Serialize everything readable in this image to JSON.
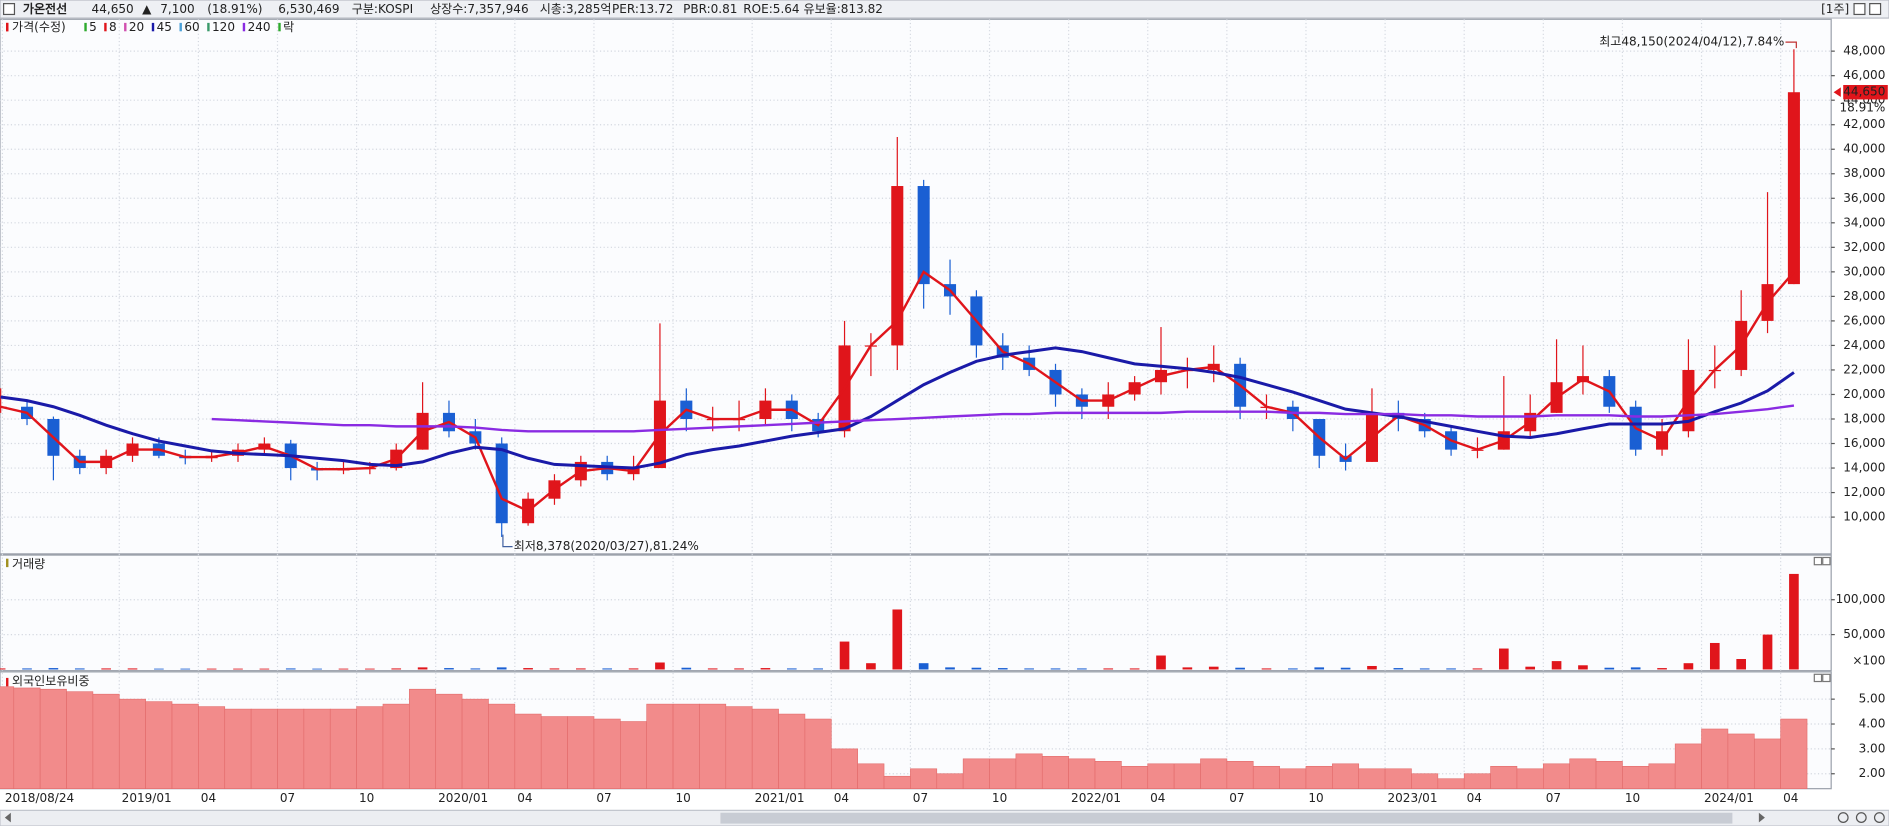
{
  "header": {
    "name": "가온전선",
    "price": "44,650",
    "arrow": "▲",
    "change": "7,100",
    "change_pct": "(18.91%)",
    "volume": "6,530,469",
    "info": [
      "구분:KOSPI",
      "상장수:7,357,946",
      "시총:3,285억",
      "PER:13.72",
      "PBR:0.81",
      "ROE:5.64",
      "유보율:813.82"
    ],
    "period": "[1주]"
  },
  "chart_data": [
    {
      "type": "candlestick",
      "title": "가격(수정)",
      "up_color": "#e0151b",
      "down_color": "#1a5fd3",
      "open": [
        19000,
        19000,
        18000,
        15000,
        14000,
        15000,
        16000,
        15000,
        14800,
        15000,
        15500,
        16000,
        14000,
        13800,
        14000,
        14000,
        15500,
        18500,
        17000,
        16000,
        9500,
        11500,
        13000,
        14500,
        13500,
        14000,
        19500,
        18000,
        18000,
        18000,
        19500,
        18000,
        17000,
        24000,
        24000,
        37000,
        29000,
        28000,
        24000,
        23000,
        22000,
        20000,
        19000,
        20000,
        21000,
        22000,
        22000,
        22500,
        19000,
        19000,
        18000,
        15000,
        14500,
        18500,
        18000,
        17000,
        15500,
        15500,
        17000,
        18500,
        21000,
        21500,
        19000,
        15500,
        17000,
        22000,
        22000,
        26000,
        29000
      ],
      "high": [
        20500,
        19500,
        18200,
        15500,
        15500,
        16500,
        16500,
        15500,
        15500,
        16000,
        16500,
        16300,
        14500,
        14500,
        14500,
        16000,
        21000,
        19500,
        18000,
        16500,
        12000,
        13500,
        15000,
        15000,
        15000,
        25800,
        20500,
        19000,
        19500,
        20500,
        20000,
        18500,
        26000,
        25000,
        41000,
        37500,
        31000,
        28500,
        25000,
        24000,
        22500,
        20500,
        21000,
        21500,
        25500,
        23000,
        24000,
        23000,
        20000,
        19500,
        18000,
        16000,
        20500,
        19500,
        18500,
        17500,
        16500,
        21500,
        20000,
        24500,
        24000,
        22000,
        19500,
        18000,
        24500,
        24000,
        28500,
        36500,
        48150
      ],
      "low": [
        18500,
        17500,
        13000,
        13500,
        13500,
        14500,
        14800,
        14300,
        14500,
        14500,
        15000,
        13000,
        13000,
        13500,
        13500,
        13800,
        15500,
        16500,
        15500,
        8378,
        9300,
        11000,
        12500,
        13000,
        13000,
        14000,
        17000,
        17000,
        17000,
        17500,
        17000,
        16500,
        16500,
        21500,
        22000,
        27000,
        26500,
        23000,
        22000,
        21500,
        19000,
        18000,
        18000,
        19500,
        20000,
        20500,
        21000,
        18000,
        18000,
        17000,
        14000,
        13800,
        14500,
        17000,
        16500,
        15000,
        14800,
        15500,
        16500,
        18500,
        20000,
        18500,
        15000,
        15000,
        16500,
        20500,
        21500,
        25000,
        29000
      ],
      "close": [
        19000,
        18000,
        15000,
        14000,
        15000,
        16000,
        15000,
        14800,
        15000,
        15500,
        16000,
        14000,
        13800,
        14000,
        14000,
        15500,
        18500,
        17000,
        16000,
        9500,
        11500,
        13000,
        14500,
        13500,
        14000,
        19500,
        18000,
        18000,
        18000,
        19500,
        18000,
        17000,
        24000,
        24000,
        37000,
        29000,
        28000,
        24000,
        23000,
        22000,
        20000,
        19000,
        20000,
        21000,
        22000,
        22000,
        22500,
        19000,
        19000,
        18000,
        15000,
        14500,
        18500,
        18000,
        17000,
        15500,
        15500,
        17000,
        18500,
        21000,
        21500,
        19000,
        15500,
        17000,
        22000,
        22000,
        26000,
        29000,
        44650
      ],
      "moving_averages": [
        {
          "name": "5",
          "color": "#2eaa2e"
        },
        {
          "name": "8",
          "color": "#e0151b",
          "width": 2,
          "values": [
            19000,
            18500,
            16500,
            14500,
            14500,
            15500,
            15500,
            14900,
            14900,
            15250,
            15750,
            15000,
            13900,
            13900,
            14000,
            14750,
            17000,
            17750,
            16500,
            11500,
            10500,
            12250,
            13750,
            14000,
            13750,
            16750,
            18750,
            18000,
            18000,
            18750,
            18750,
            17500,
            20500,
            24000,
            26000,
            30000,
            28500,
            26000,
            23500,
            22500,
            21000,
            19500,
            19500,
            20500,
            21500,
            22000,
            22250,
            20750,
            19000,
            18500,
            16500,
            14750,
            16500,
            18250,
            17500,
            16250,
            15500,
            16250,
            17750,
            19750,
            21250,
            20250,
            17250,
            16250,
            19500,
            22000,
            24000,
            27500,
            30000
          ]
        },
        {
          "name": "20",
          "color": "#d050b0"
        },
        {
          "name": "45",
          "color": "#1a1aa8",
          "width": 2.5,
          "values": [
            19800,
            19500,
            19000,
            18300,
            17500,
            16800,
            16200,
            15800,
            15400,
            15200,
            15100,
            15000,
            14800,
            14600,
            14300,
            14200,
            14500,
            15200,
            15700,
            15500,
            14800,
            14300,
            14200,
            14100,
            14000,
            14400,
            15100,
            15500,
            15800,
            16200,
            16600,
            16900,
            17200,
            18200,
            19500,
            20800,
            21800,
            22700,
            23200,
            23500,
            23800,
            23500,
            23000,
            22500,
            22300,
            22100,
            21800,
            21400,
            20800,
            20200,
            19500,
            18800,
            18500,
            18200,
            17800,
            17400,
            17000,
            16600,
            16500,
            16800,
            17200,
            17600,
            17600,
            17600,
            17800,
            18600,
            19300,
            20300,
            21800
          ]
        },
        {
          "name": "60",
          "color": "#4aa0d8"
        },
        {
          "name": "120",
          "color": "#3a9a6a"
        },
        {
          "name": "240",
          "color": "#8a2be2",
          "width": 2,
          "values": [
            null,
            null,
            null,
            null,
            null,
            null,
            null,
            null,
            18000,
            17900,
            17800,
            17700,
            17600,
            17500,
            17500,
            17400,
            17400,
            17400,
            17300,
            17100,
            17000,
            17000,
            17000,
            17000,
            17000,
            17100,
            17200,
            17300,
            17400,
            17500,
            17600,
            17700,
            17800,
            17900,
            18000,
            18100,
            18200,
            18300,
            18400,
            18400,
            18500,
            18500,
            18500,
            18500,
            18500,
            18600,
            18600,
            18600,
            18600,
            18500,
            18500,
            18400,
            18400,
            18400,
            18300,
            18300,
            18200,
            18200,
            18200,
            18300,
            18300,
            18300,
            18200,
            18200,
            18300,
            18400,
            18600,
            18800,
            19100
          ]
        }
      ],
      "extra_legend": "락",
      "high_label": "최고48,150(2024/04/12),7.84%",
      "low_label": "최저8,378(2020/03/27),81.24%",
      "last_price_label": "44,650",
      "last_change_label": "18.91%",
      "ylim": [
        7000,
        50600
      ],
      "yticks": [
        {
          "value": 10000,
          "label": "10,000"
        },
        {
          "value": 12000,
          "label": "12,000"
        },
        {
          "value": 14000,
          "label": "14,000"
        },
        {
          "value": 16000,
          "label": "16,000"
        },
        {
          "value": 18000,
          "label": "18,000"
        },
        {
          "value": 20000,
          "label": "20,000"
        },
        {
          "value": 22000,
          "label": "22,000"
        },
        {
          "value": 24000,
          "label": "24,000"
        },
        {
          "value": 26000,
          "label": "26,000"
        },
        {
          "value": 28000,
          "label": "28,000"
        },
        {
          "value": 30000,
          "label": "30,000"
        },
        {
          "value": 32000,
          "label": "32,000"
        },
        {
          "value": 34000,
          "label": "34,000"
        },
        {
          "value": 36000,
          "label": "36,000"
        },
        {
          "value": 38000,
          "label": "38,000"
        },
        {
          "value": 40000,
          "label": "40,000"
        },
        {
          "value": 42000,
          "label": "42,000"
        },
        {
          "value": 44000,
          "label": "44,000"
        },
        {
          "value": 46000,
          "label": "46,000"
        },
        {
          "value": 48000,
          "label": "48,000"
        }
      ],
      "grid": true
    },
    {
      "type": "bar",
      "title": "거래량",
      "unit_label": "×100",
      "values": [
        1500,
        1500,
        2000,
        1500,
        1500,
        1500,
        1200,
        1200,
        1200,
        1200,
        1200,
        1500,
        1200,
        1200,
        1200,
        1500,
        3000,
        2000,
        1500,
        3000,
        2000,
        1500,
        1500,
        1500,
        1500,
        10000,
        2500,
        1500,
        1500,
        2000,
        1500,
        1500,
        40000,
        9000,
        86000,
        9000,
        3000,
        2500,
        2000,
        1500,
        1500,
        1500,
        1500,
        1500,
        20000,
        3000,
        4000,
        2500,
        1500,
        1500,
        3000,
        2500,
        5000,
        2000,
        1500,
        1500,
        1500,
        30000,
        4000,
        12000,
        6000,
        2500,
        3000,
        2000,
        9000,
        38000,
        15000,
        50000,
        137000
      ],
      "ylim": [
        0,
        164000
      ],
      "yticks": [
        {
          "value": 50000,
          "label": "50,000"
        },
        {
          "value": 100000,
          "label": "100,000"
        }
      ]
    },
    {
      "type": "bar",
      "title": "외국인보유비중",
      "color": "#f28b8b",
      "values": [
        5.5,
        5.45,
        5.4,
        5.3,
        5.2,
        5.0,
        4.9,
        4.8,
        4.7,
        4.6,
        4.6,
        4.6,
        4.6,
        4.6,
        4.7,
        4.8,
        5.4,
        5.2,
        5.0,
        4.8,
        4.4,
        4.3,
        4.3,
        4.2,
        4.1,
        4.8,
        4.8,
        4.8,
        4.7,
        4.6,
        4.4,
        4.2,
        3.0,
        2.4,
        1.9,
        2.2,
        2.0,
        2.6,
        2.6,
        2.8,
        2.7,
        2.6,
        2.5,
        2.3,
        2.4,
        2.4,
        2.6,
        2.5,
        2.3,
        2.2,
        2.3,
        2.4,
        2.2,
        2.2,
        2.0,
        1.8,
        2.0,
        2.3,
        2.2,
        2.4,
        2.6,
        2.5,
        2.3,
        2.4,
        3.2,
        3.8,
        3.6,
        3.4,
        4.2
      ],
      "categories": [
        "2018/08/24",
        null,
        null,
        null,
        null,
        "2019/01",
        null,
        null,
        "04",
        null,
        null,
        "07",
        null,
        null,
        "10",
        null,
        null,
        "2020/01",
        null,
        null,
        "04",
        null,
        null,
        "07",
        null,
        null,
        "10",
        null,
        null,
        "2021/01",
        null,
        null,
        "04",
        null,
        null,
        "07",
        null,
        null,
        "10",
        null,
        null,
        "2022/01",
        null,
        null,
        "04",
        null,
        null,
        "07",
        null,
        null,
        "10",
        null,
        null,
        "2023/01",
        null,
        null,
        "04",
        null,
        null,
        "07",
        null,
        null,
        "10",
        null,
        null,
        "2024/01",
        null,
        null,
        "04"
      ],
      "ylim": [
        1.4,
        6.0
      ],
      "yticks": [
        {
          "value": 2,
          "label": "2.00"
        },
        {
          "value": 3,
          "label": "3.00"
        },
        {
          "value": 4,
          "label": "4.00"
        },
        {
          "value": 5,
          "label": "5.00"
        }
      ]
    }
  ]
}
